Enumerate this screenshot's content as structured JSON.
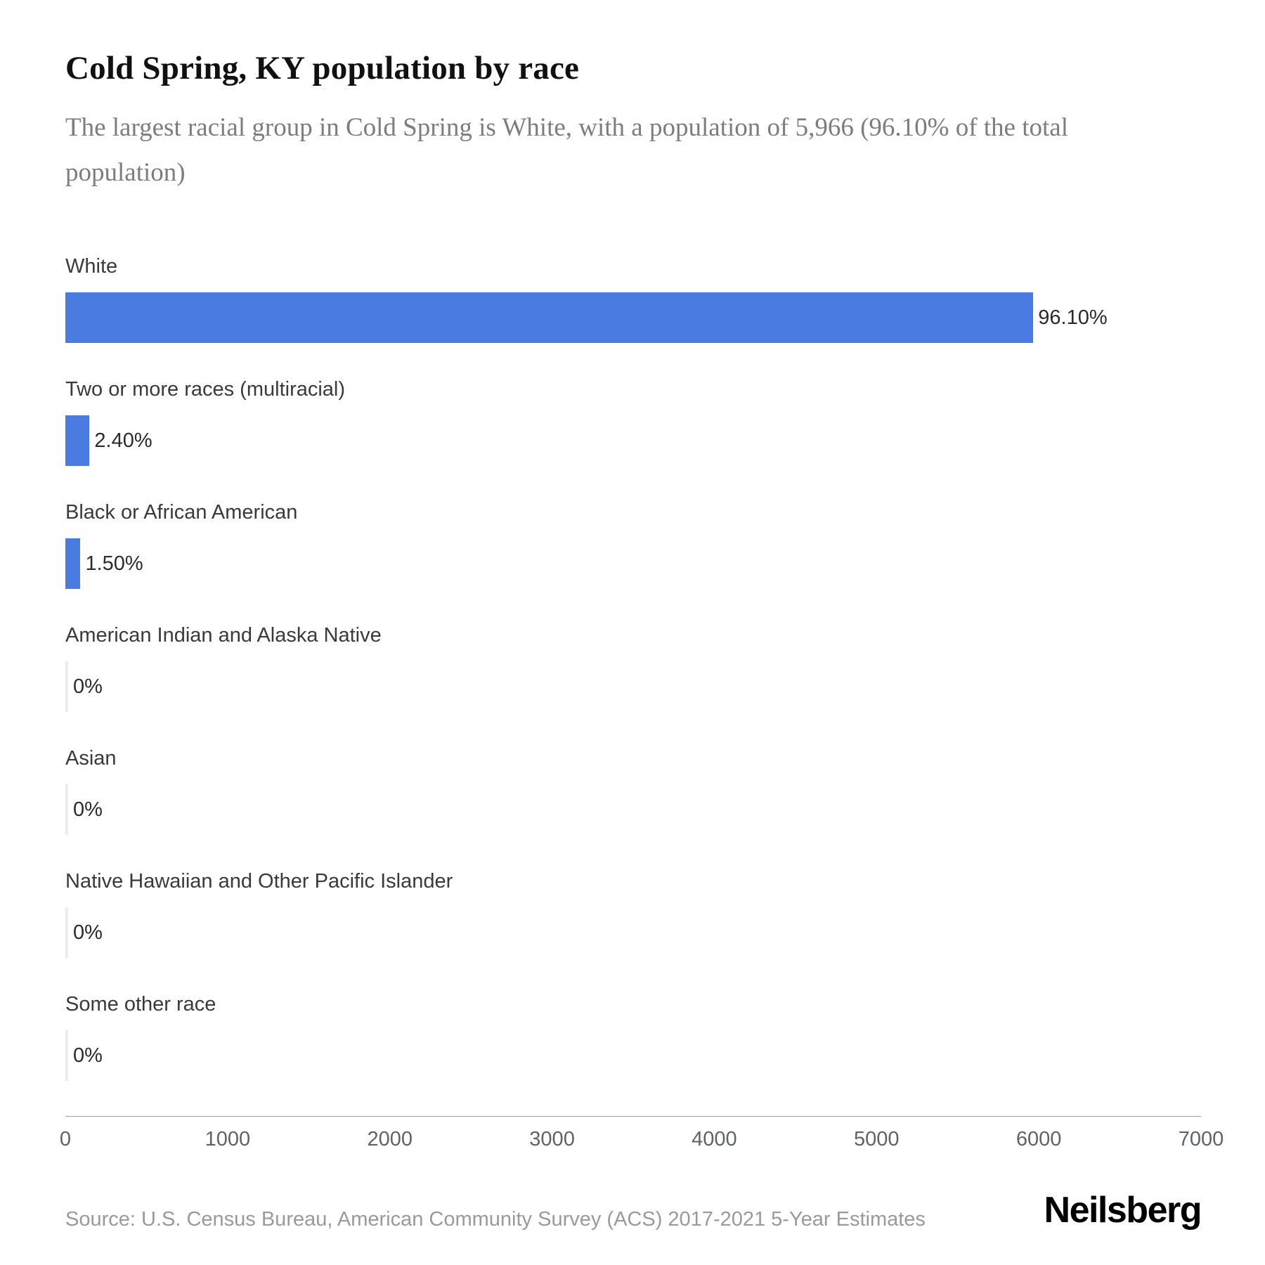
{
  "header": {
    "title": "Cold Spring, KY population by race",
    "subtitle": "The largest racial group in Cold Spring is White, with a population of 5,966 (96.10% of the total population)"
  },
  "chart_data": {
    "type": "bar",
    "orientation": "horizontal",
    "title": "Cold Spring, KY population by race",
    "categories": [
      "White",
      "Two or more races (multiracial)",
      "Black or African American",
      "American Indian and Alaska Native",
      "Asian",
      "Native Hawaiian and Other Pacific Islander",
      "Some other race"
    ],
    "values": [
      5966,
      149,
      93,
      0,
      0,
      0,
      0
    ],
    "value_labels": [
      "96.10%",
      "2.40%",
      "1.50%",
      "0%",
      "0%",
      "0%",
      "0%"
    ],
    "xlabel": "",
    "ylabel": "",
    "xlim": [
      0,
      7000
    ],
    "xticks": [
      0,
      1000,
      2000,
      3000,
      4000,
      5000,
      6000,
      7000
    ],
    "grid": false,
    "legend": false,
    "bar_color": "#4a7be0",
    "zero_bar_color": "#ececec"
  },
  "footer": {
    "source": "Source: U.S. Census Bureau, American Community Survey (ACS) 2017-2021 5-Year Estimates",
    "logo": "Neilsberg"
  }
}
